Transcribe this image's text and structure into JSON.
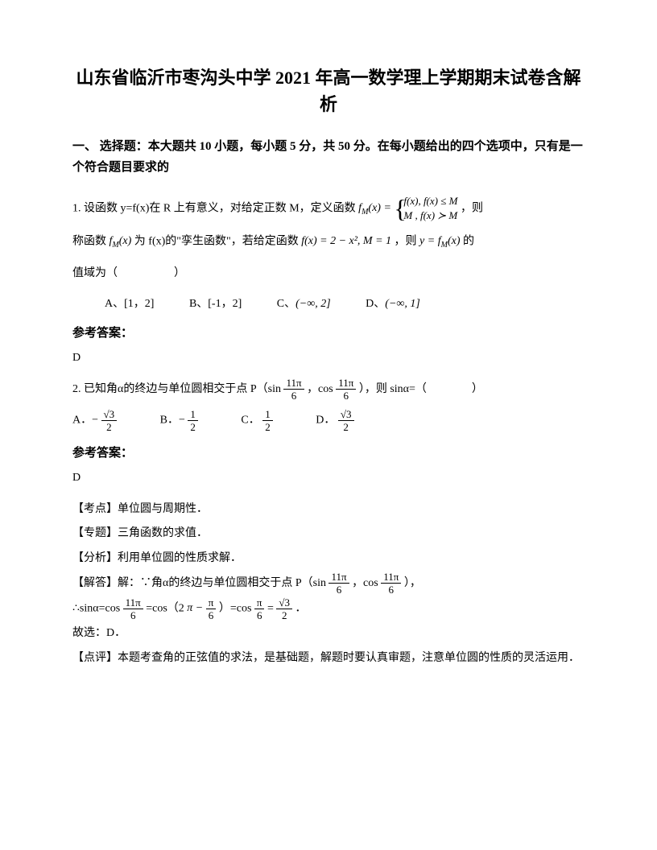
{
  "title": "山东省临沂市枣沟头中学 2021 年高一数学理上学期期末试卷含解析",
  "section_header": "一、 选择题：本大题共 10 小题，每小题 5 分，共 50 分。在每小题给出的四个选项中，只有是一个符合题目要求的",
  "q1": {
    "text_start": "1. 设函数 y=f(x)在 R 上有意义，对给定正数 M，定义函数",
    "formula_fm": "f",
    "formula_sub": "M",
    "formula_eq": "(x) = ",
    "brace_line1": "f(x), f(x) ≤ M",
    "brace_line2": "M , f(x) ≻ M",
    "text_after_brace": "，则",
    "text_line2_start": "称函数",
    "formula_fmx": "f",
    "formula_fmx_sub": "M",
    "formula_fmx_paren": "(x)",
    "text_line2_mid": " 为 f(x)的\"孪生函数\"，若给定函数",
    "formula_fx": "f(x) = 2 − x², M = 1",
    "text_line2_end": "，则",
    "formula_yfm": "y = f",
    "formula_yfm_sub": "M",
    "formula_yfm_end": "(x)",
    "text_line2_final": " 的",
    "text_line3": "值域为（　　　　　）",
    "opts": {
      "a": "A、[1，2]",
      "b": "B、[-1，2]",
      "c_label": "C、",
      "c_val": "(−∞, 2]",
      "d_label": "D、",
      "d_val": "(−∞, 1]"
    },
    "answer_label": "参考答案：",
    "answer": "D"
  },
  "q2": {
    "text_start": "2. 已知角α的终边与单位圆相交于点 P（sin",
    "frac1_num": "11π",
    "frac1_den": "6",
    "text_mid1": "，cos",
    "frac2_num": "11π",
    "frac2_den": "6",
    "text_end1": "），则 sinα=（　　　　）",
    "opts": {
      "a_label": "A．−",
      "a_num": "√3",
      "a_den": "2",
      "b_label": "B．−",
      "b_num": "1",
      "b_den": "2",
      "c_label": "C．",
      "c_num": "1",
      "c_den": "2",
      "d_label": "D．",
      "d_num": "√3",
      "d_den": "2"
    },
    "answer_label": "参考答案：",
    "answer": "D",
    "analysis": {
      "kaodian": "【考点】单位圆与周期性．",
      "zhuanti": "【专题】三角函数的求值．",
      "fenxi": "【分析】利用单位圆的性质求解．",
      "jieda_start": "【解答】解：∵角α的终边与单位圆相交于点 P（sin",
      "jieda_frac1_num": "11π",
      "jieda_frac1_den": "6",
      "jieda_mid1": "，cos",
      "jieda_frac2_num": "11π",
      "jieda_frac2_den": "6",
      "jieda_end1": "），",
      "jieda_line2_start": "∴sinα=cos",
      "jieda_l2_f1_num": "11π",
      "jieda_l2_f1_den": "6",
      "jieda_l2_mid1": "=cos（2",
      "jieda_l2_f2_pre": "π −",
      "jieda_l2_f2_num": "π",
      "jieda_l2_f2_den": "6",
      "jieda_l2_mid2": "）=cos",
      "jieda_l2_f3_num": "π",
      "jieda_l2_f3_den": "6",
      "jieda_l2_mid3": "=",
      "jieda_l2_f4_num": "√3",
      "jieda_l2_f4_den": "2",
      "jieda_l2_end": "．",
      "guxuan": "故选：D．",
      "dianping": "【点评】本题考查角的正弦值的求法，是基础题，解题时要认真审题，注意单位圆的性质的灵活运用．"
    }
  }
}
